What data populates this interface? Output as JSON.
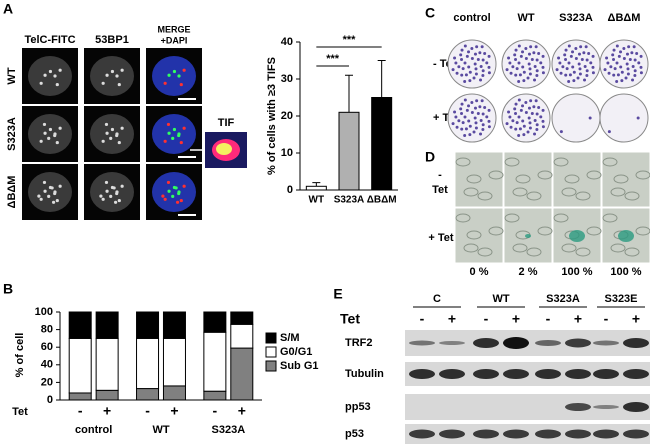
{
  "chart_data": [
    {
      "type": "bar",
      "ylabel": "% of cells with ≥3 TIFS",
      "categories": [
        "WT",
        "S323A",
        "ΔBΔM"
      ],
      "values": [
        1,
        21,
        25
      ],
      "errors": [
        1,
        10,
        10
      ],
      "colors": [
        "#ffffff",
        "#b0b0b0",
        "#000000"
      ],
      "ylim": [
        0,
        40
      ],
      "yticks": [
        0,
        10,
        20,
        30,
        40
      ],
      "annotations": [
        "***",
        "***"
      ]
    },
    {
      "type": "stacked-bar",
      "ylabel": "% of cell",
      "xlabel": "Tet",
      "categories": [
        "-",
        "+",
        "-",
        "+",
        "-",
        "+"
      ],
      "groups": [
        "control",
        "WT",
        "S323A"
      ],
      "series": [
        {
          "name": "Sub G1",
          "color": "#808080",
          "values": [
            8,
            11,
            13,
            16,
            10,
            59
          ]
        },
        {
          "name": "G0/G1",
          "color": "#ffffff",
          "values": [
            62,
            59,
            57,
            54,
            67,
            27
          ]
        },
        {
          "name": "S/M",
          "color": "#000000",
          "values": [
            30,
            30,
            30,
            30,
            23,
            14
          ]
        }
      ],
      "ylim": [
        0,
        100
      ],
      "yticks": [
        0,
        20,
        40,
        60,
        80,
        100
      ]
    }
  ],
  "figure": {
    "panel_labels": [
      "A",
      "B",
      "C",
      "D",
      "E"
    ],
    "panel_a": {
      "columns": [
        "TelC-FITC",
        "53BP1"
      ],
      "merge_label": [
        "MERGE",
        "+DAPI"
      ],
      "rows": [
        "WT",
        "S323A",
        "ΔBΔM"
      ],
      "inset": "TIF"
    },
    "panel_c": {
      "columns": [
        "control",
        "WT",
        "S323A",
        "ΔBΔM"
      ],
      "rows": [
        "- Tet",
        "+ Tet"
      ]
    },
    "panel_d": {
      "row_minus": [
        "-",
        "Tet"
      ],
      "row_plus": "+ Tet",
      "percentages": [
        "0 %",
        "2 %",
        "100 %",
        "100 %"
      ]
    },
    "panel_e": {
      "groups": [
        "C",
        "WT",
        "S323A",
        "S323E"
      ],
      "treatment": "Tet",
      "signs": [
        "-",
        "+",
        "-",
        "+",
        "-",
        "+",
        "-",
        "+"
      ],
      "proteins": [
        "TRF2",
        "Tubulin",
        "pp53",
        "p53"
      ]
    }
  }
}
